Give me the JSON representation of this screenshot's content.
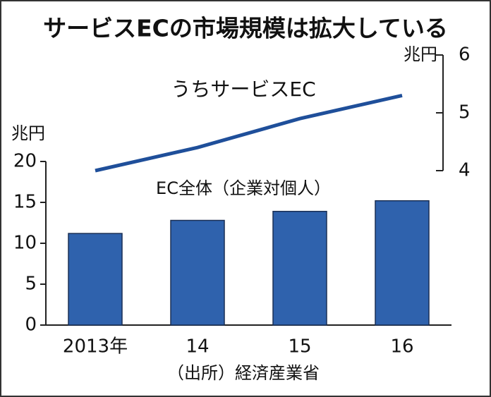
{
  "chart_data": {
    "type": "bar",
    "title": "サービスECの市場規模は拡大している",
    "categories": [
      "2013年",
      "14",
      "15",
      "16"
    ],
    "series": [
      {
        "name": "EC全体（企業対個人）",
        "type": "bar",
        "color": "#2f62ad",
        "values": [
          11.2,
          12.8,
          13.9,
          15.2
        ]
      },
      {
        "name": "うちサービスEC",
        "type": "line",
        "axis": "y2",
        "color": "#1f4f9a",
        "values": [
          4.0,
          4.4,
          4.9,
          5.3
        ]
      }
    ],
    "y_unit": "兆円",
    "y2_unit": "兆円",
    "ylim": [
      0,
      20
    ],
    "yticks": [
      0,
      5,
      10,
      15,
      20
    ],
    "y2lim": [
      4,
      6
    ],
    "y2ticks": [
      4,
      5,
      6
    ],
    "source": "（出所）経済産業省"
  }
}
